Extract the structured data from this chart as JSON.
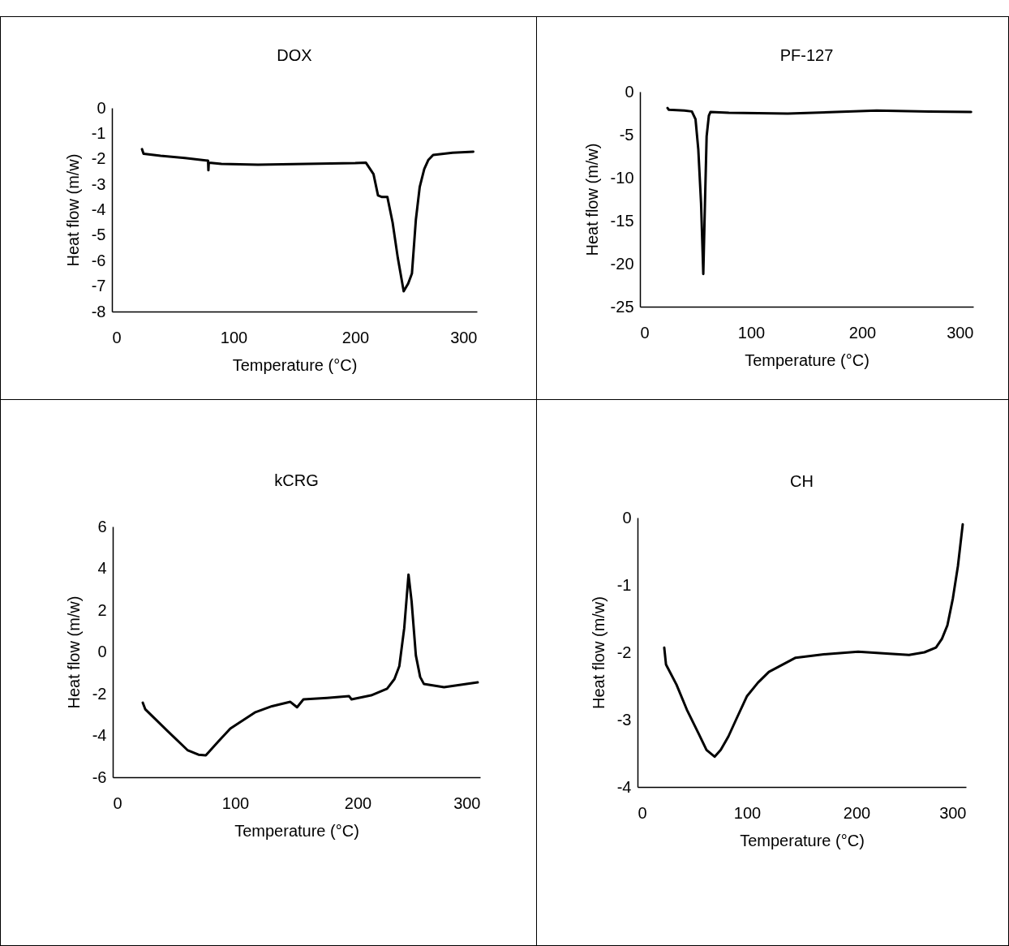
{
  "chart_data": [
    {
      "type": "line",
      "title": "DOX",
      "xlabel": "Temperature (°C)",
      "ylabel": "Heat flow (m/w)",
      "xlim": [
        0,
        300
      ],
      "xticks": [
        0,
        100,
        200,
        300
      ],
      "ylim": [
        -8,
        0
      ],
      "yticks": [
        0,
        -1,
        -2,
        -3,
        -4,
        -5,
        -6,
        -7,
        -8
      ],
      "x": [
        24.7,
        26,
        40,
        60,
        79,
        79.3,
        79.6,
        90,
        120,
        160,
        200,
        208.7,
        215,
        218.7,
        222,
        226.4,
        230.7,
        235,
        239.8,
        243.5,
        246.6,
        249.8,
        253,
        256.7,
        260,
        264,
        280,
        297
      ],
      "series": [
        {
          "color": "#000000",
          "values": [
            -1.62,
            -1.8,
            -1.88,
            -1.97,
            -2.07,
            -2.45,
            -2.15,
            -2.2,
            -2.23,
            -2.2,
            -2.17,
            -2.15,
            -2.6,
            -3.44,
            -3.5,
            -3.5,
            -4.5,
            -5.9,
            -7.2,
            -6.9,
            -6.5,
            -4.4,
            -3.1,
            -2.4,
            -2.05,
            -1.85,
            -1.76,
            -1.72
          ]
        }
      ]
    },
    {
      "type": "line",
      "title": "PF-127",
      "xlabel": "Temperature (°C)",
      "ylabel": "Heat flow (m/w)",
      "xlim": [
        0,
        300
      ],
      "xticks": [
        0,
        100,
        200,
        300
      ],
      "ylim": [
        -25,
        0
      ],
      "yticks": [
        0,
        -5,
        -10,
        -15,
        -20,
        -25
      ],
      "x": [
        24.8,
        26,
        40,
        46.7,
        50,
        52.5,
        55,
        57,
        58.5,
        60,
        62,
        63.5,
        80,
        133,
        213,
        260,
        298
      ],
      "series": [
        {
          "color": "#000000",
          "values": [
            -1.9,
            -2.1,
            -2.2,
            -2.3,
            -3.2,
            -6.7,
            -13,
            -21.2,
            -13,
            -5.2,
            -2.8,
            -2.35,
            -2.45,
            -2.55,
            -2.2,
            -2.3,
            -2.35
          ]
        }
      ]
    },
    {
      "type": "line",
      "title": "kCRG",
      "xlabel": "Temperature (°C)",
      "ylabel": "Heat flow (m/w)",
      "xlim": [
        0,
        300
      ],
      "xticks": [
        0,
        100,
        200,
        300
      ],
      "ylim": [
        -6,
        6
      ],
      "yticks": [
        6,
        4,
        2,
        0,
        -2,
        -4,
        -6
      ],
      "x": [
        24.5,
        26.5,
        45,
        61,
        70,
        76,
        86,
        96,
        116,
        130,
        145,
        150.5,
        155.7,
        175,
        193,
        195,
        211,
        224,
        230,
        234,
        238,
        241.5,
        244,
        247.5,
        251,
        254,
        270.5,
        298
      ],
      "series": [
        {
          "color": "#000000",
          "values": [
            -2.43,
            -2.74,
            -3.8,
            -4.7,
            -4.92,
            -4.95,
            -4.3,
            -3.67,
            -2.9,
            -2.6,
            -2.39,
            -2.65,
            -2.27,
            -2.2,
            -2.12,
            -2.27,
            -2.08,
            -1.76,
            -1.3,
            -0.68,
            1.14,
            3.7,
            2.43,
            -0.17,
            -1.2,
            -1.53,
            -1.69,
            -1.46
          ]
        }
      ]
    },
    {
      "type": "line",
      "title": "CH",
      "xlabel": "Temperature (°C)",
      "ylabel": "Heat flow (m/w)",
      "xlim": [
        0,
        300
      ],
      "xticks": [
        0,
        100,
        200,
        300
      ],
      "ylim": [
        -4,
        0
      ],
      "yticks": [
        0,
        -1,
        -2,
        -3,
        -4
      ],
      "x": [
        24.4,
        26,
        35.6,
        45,
        55.6,
        63,
        70.4,
        76,
        83,
        90,
        100,
        110,
        120,
        144.4,
        170,
        201.5,
        230,
        248,
        262,
        272.6,
        278,
        283,
        288,
        292.6,
        297
      ],
      "series": [
        {
          "color": "#000000",
          "values": [
            -1.93,
            -2.18,
            -2.48,
            -2.85,
            -3.2,
            -3.45,
            -3.55,
            -3.45,
            -3.25,
            -3,
            -2.65,
            -2.45,
            -2.29,
            -2.08,
            -2.03,
            -1.99,
            -2.02,
            -2.04,
            -2.0,
            -1.93,
            -1.8,
            -1.6,
            -1.2,
            -0.72,
            -0.1
          ]
        }
      ]
    }
  ]
}
